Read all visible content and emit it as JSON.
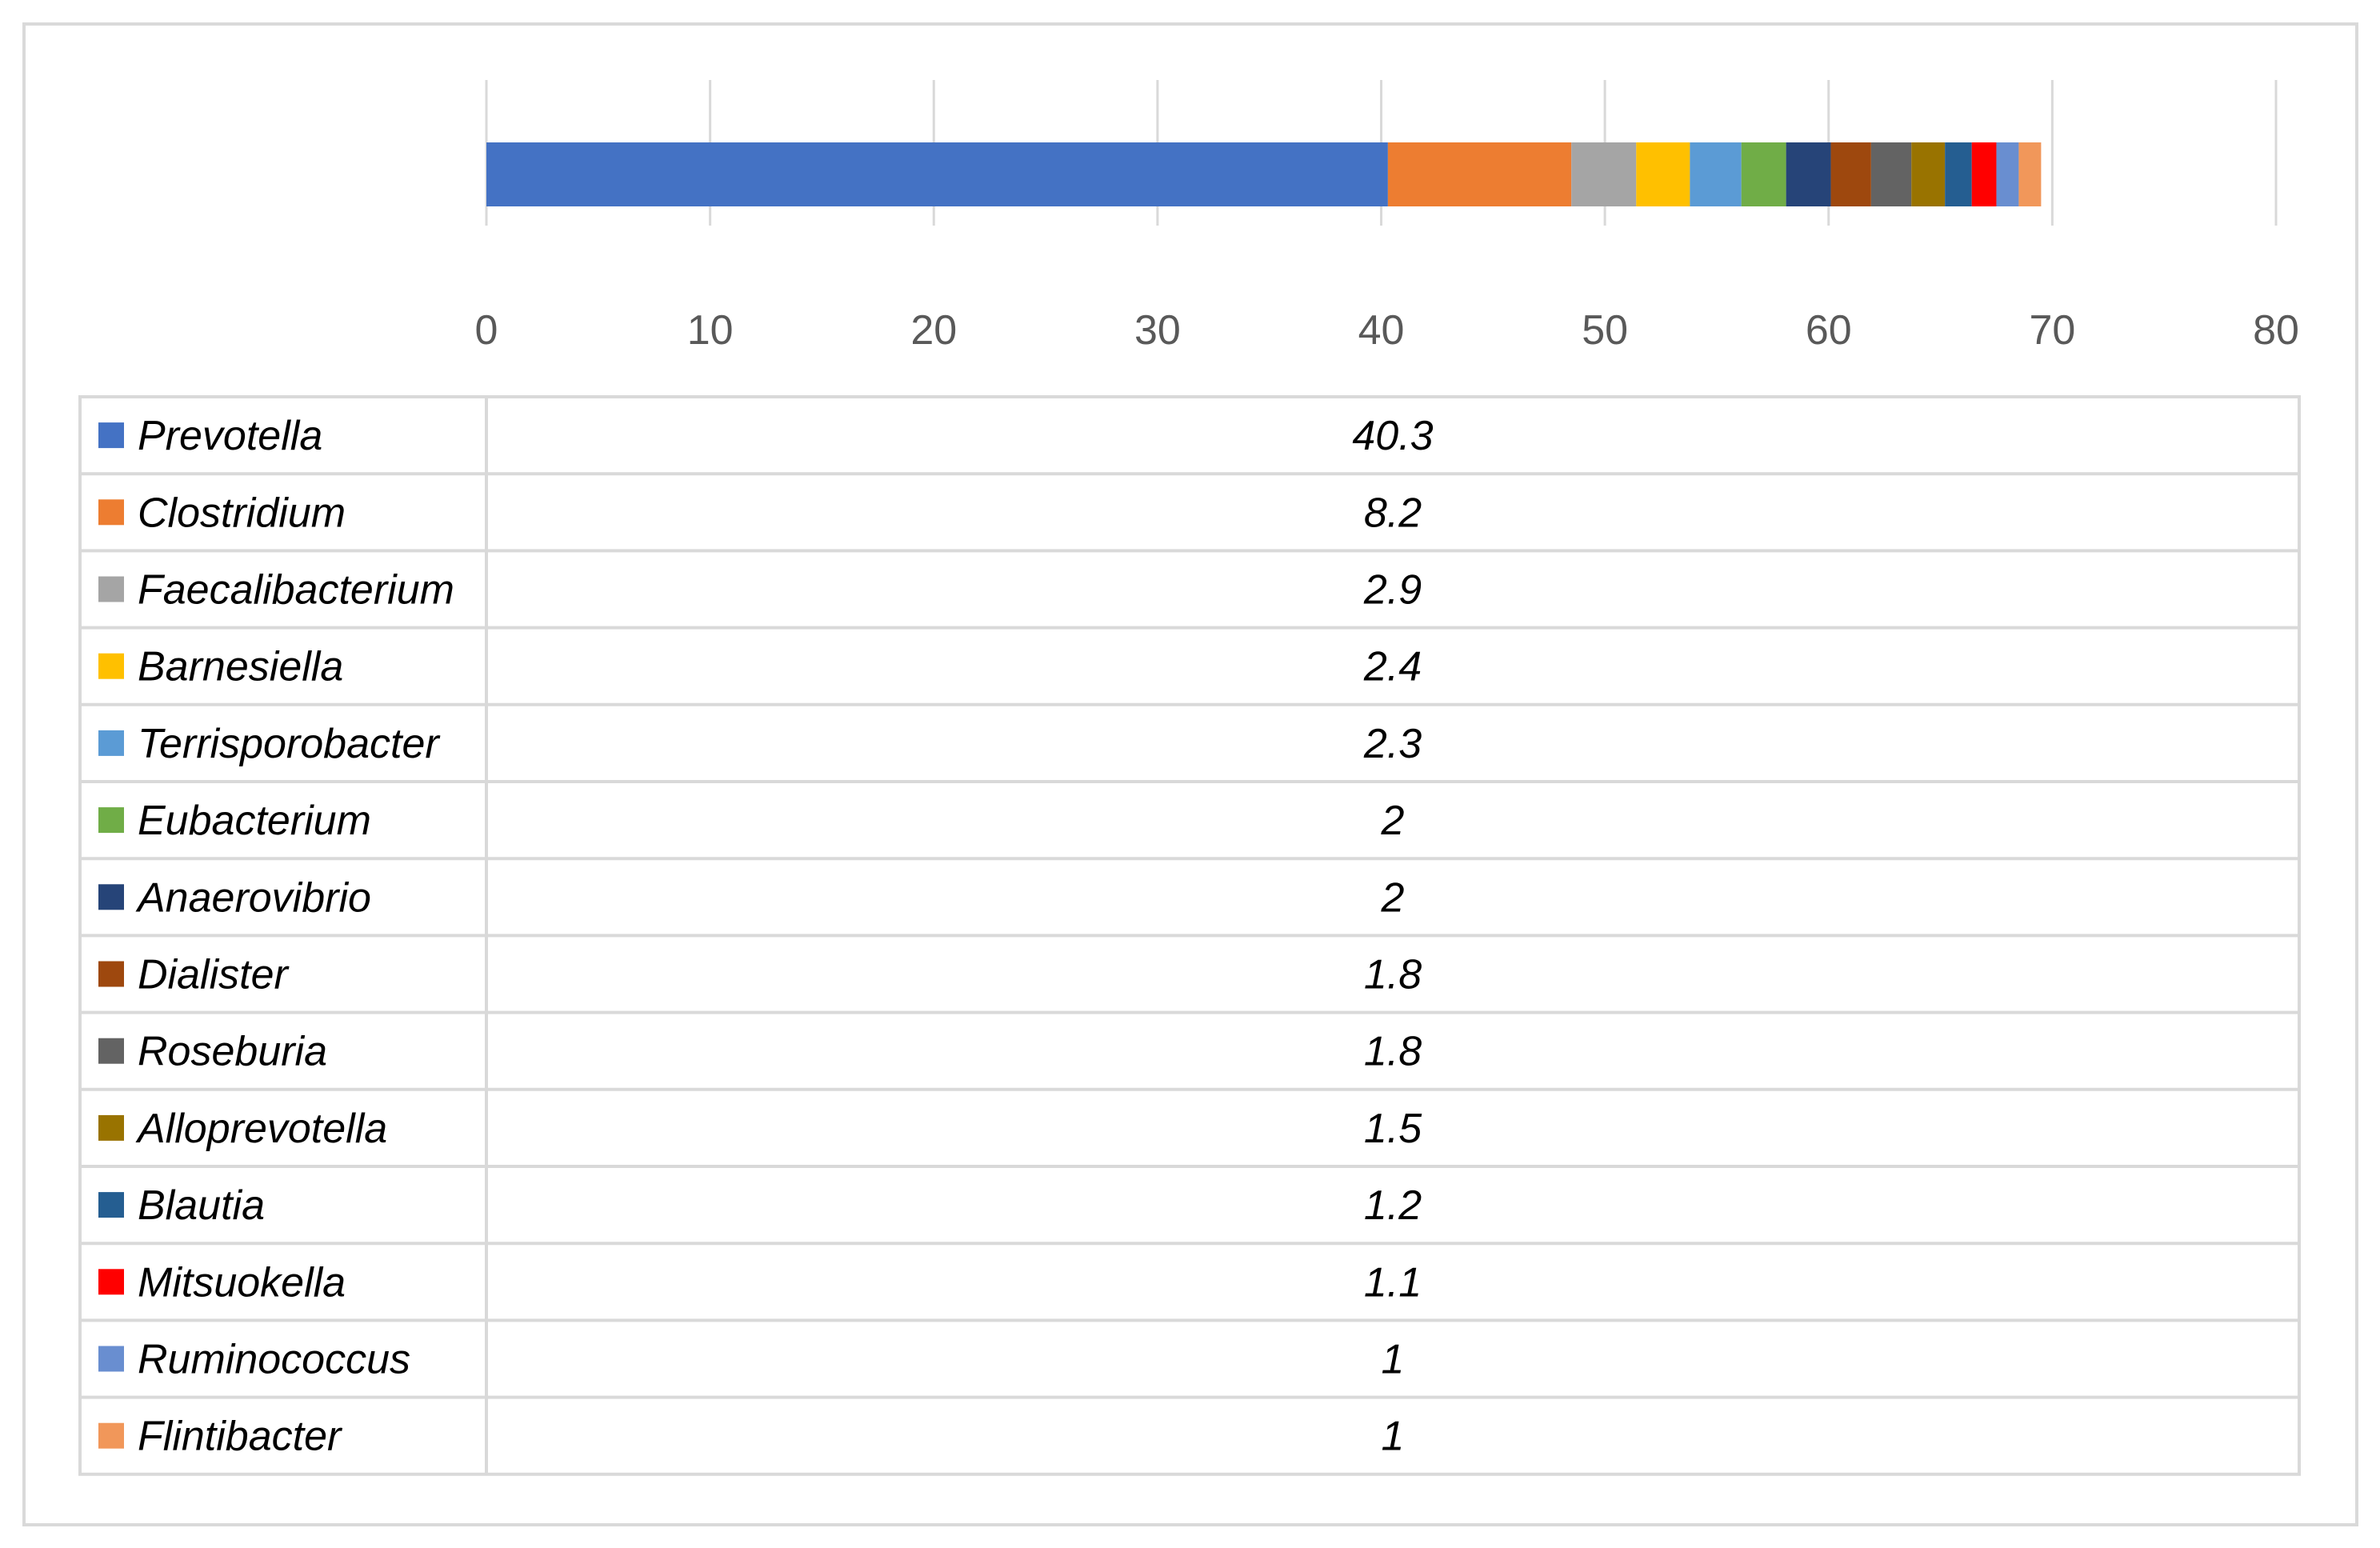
{
  "chart_data": {
    "type": "bar",
    "orientation": "horizontal",
    "stacked": true,
    "xlim": [
      0,
      80
    ],
    "x_ticks": [
      0,
      10,
      20,
      30,
      40,
      50,
      60,
      70,
      80
    ],
    "gridlines": true,
    "legend": "data-table-below",
    "series": [
      {
        "name": "Prevotella",
        "value": 40.3,
        "label": "40.3",
        "color": "#4472C4"
      },
      {
        "name": "Clostridium",
        "value": 8.2,
        "label": "8.2",
        "color": "#ED7D31"
      },
      {
        "name": "Faecalibacterium",
        "value": 2.9,
        "label": "2.9",
        "color": "#A5A5A5"
      },
      {
        "name": "Barnesiella",
        "value": 2.4,
        "label": "2.4",
        "color": "#FFC000"
      },
      {
        "name": "Terrisporobacter",
        "value": 2.3,
        "label": "2.3",
        "color": "#5B9BD5"
      },
      {
        "name": "Eubacterium",
        "value": 2,
        "label": "2",
        "color": "#70AD47"
      },
      {
        "name": "Anaerovibrio",
        "value": 2,
        "label": "2",
        "color": "#264478"
      },
      {
        "name": "Dialister",
        "value": 1.8,
        "label": "1.8",
        "color": "#9E480E"
      },
      {
        "name": "Roseburia",
        "value": 1.8,
        "label": "1.8",
        "color": "#636363"
      },
      {
        "name": "Alloprevotella",
        "value": 1.5,
        "label": "1.5",
        "color": "#997300"
      },
      {
        "name": "Blautia",
        "value": 1.2,
        "label": "1.2",
        "color": "#255E91"
      },
      {
        "name": "Mitsuokella",
        "value": 1.1,
        "label": "1.1",
        "color": "#FF0000"
      },
      {
        "name": "Ruminococcus",
        "value": 1,
        "label": "1",
        "color": "#698ED0"
      },
      {
        "name": "Flintibacter",
        "value": 1,
        "label": "1",
        "color": "#F1975A"
      }
    ]
  }
}
